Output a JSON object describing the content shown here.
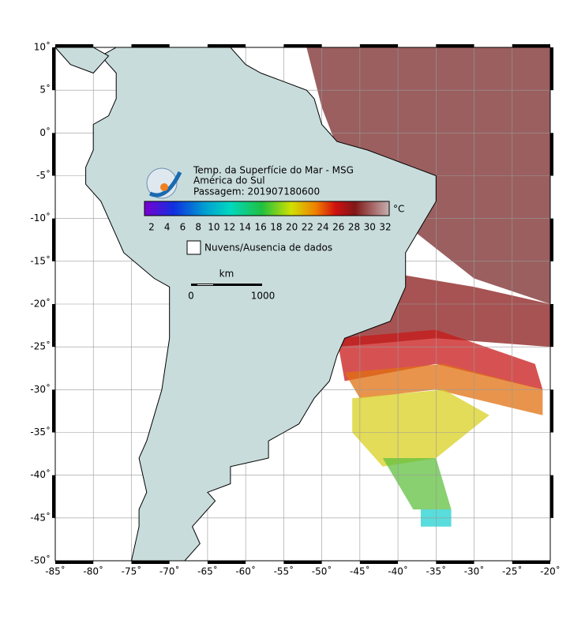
{
  "header": {
    "lines": [
      "Temp. da Superfície do Mar - MSG",
      "América do Sul",
      "Passagem: 201907180600"
    ]
  },
  "colorbar": {
    "ticks": [
      2,
      4,
      6,
      8,
      10,
      12,
      14,
      16,
      18,
      20,
      22,
      24,
      26,
      28,
      30,
      32
    ],
    "unit": "°C"
  },
  "legend": {
    "label": "Nuvens/Ausencia de dados"
  },
  "scale": {
    "title": "km",
    "labels": [
      "0",
      "1000"
    ]
  },
  "axes": {
    "lat_labels": [
      "10˚",
      "5˚",
      "0˚",
      "-5˚",
      "-10˚",
      "-15˚",
      "-20˚",
      "-25˚",
      "-30˚",
      "-35˚",
      "-40˚",
      "-45˚",
      "-50˚"
    ],
    "lon_labels": [
      "-85˚",
      "-80˚",
      "-75˚",
      "-70˚",
      "-65˚",
      "-60˚",
      "-55˚",
      "-50˚",
      "-45˚",
      "-40˚",
      "-35˚",
      "-30˚",
      "-25˚",
      "-20˚"
    ]
  }
}
